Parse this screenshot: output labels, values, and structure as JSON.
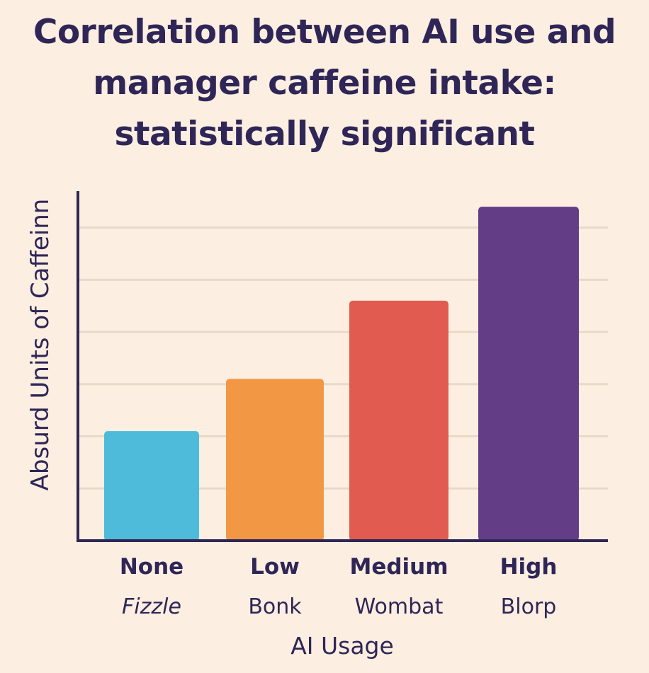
{
  "chart_data": {
    "type": "bar",
    "title_lines": [
      "Correlation between AI use and",
      "manager caffeine intake:",
      "statistically significant"
    ],
    "xlabel": "AI Usage",
    "ylabel": "Absurd Units of Caffeinn",
    "categories": [
      "None",
      "Low",
      "Medium",
      "High"
    ],
    "subcategories": [
      "Fizzle",
      "Bonk",
      "Wombat",
      "Blorp"
    ],
    "values": [
      2.1,
      3.1,
      4.6,
      6.4
    ],
    "colors": [
      "#4DBBD9",
      "#F29845",
      "#E25B50",
      "#633E86"
    ],
    "ylim": [
      0,
      6.7
    ],
    "grid": true,
    "axis_color": "#2F2657",
    "grid_color": "#E8D9C8"
  }
}
